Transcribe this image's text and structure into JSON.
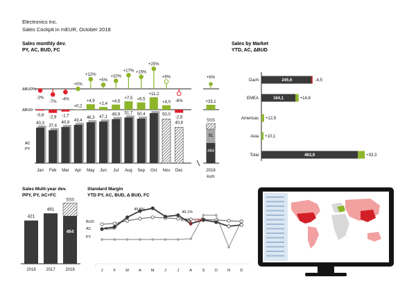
{
  "header": {
    "company": "Electronics Inc.",
    "subtitle": "Sales Cockpit in mEUR, October 2018"
  },
  "colors": {
    "ac": "#3a3a3a",
    "py": "#a6a6a6",
    "positive": "#8db52a",
    "negative": "#e0202a",
    "axis": "#222222"
  },
  "chart_data": [
    {
      "id": "sales-monthly",
      "type": "bar",
      "title": "Sales monthly dev.",
      "subtitle": "PY, AC, BUD, FC",
      "categories": [
        "Jan",
        "Feb",
        "Mar",
        "Apr",
        "May",
        "Jun",
        "Jul",
        "Aug",
        "Sep",
        "Oct",
        "Nov",
        "Dec"
      ],
      "series": [
        {
          "name": "PY",
          "values": [
            null,
            null,
            null,
            null,
            null,
            null,
            null,
            null,
            null,
            null,
            null,
            null
          ]
        },
        {
          "name": "AC",
          "values": [
            40.3,
            37.4,
            40.9,
            43.4,
            46.3,
            47.1,
            49.9,
            51.7,
            50.4,
            56.7,
            null,
            null
          ]
        },
        {
          "name": "FC",
          "values": [
            null,
            null,
            null,
            null,
            null,
            null,
            null,
            null,
            null,
            null,
            50.0,
            40.6
          ]
        }
      ],
      "value_labels": [
        "40,3",
        "37,4",
        "40,9",
        "43,4",
        "46,3",
        "47,1",
        "49,9",
        "51,7",
        "50,4",
        "56,7",
        "50,0",
        "40,6"
      ],
      "delta_bud_abs": [
        -0.8,
        -2.9,
        -1.7,
        0.2,
        4.9,
        2.4,
        4.6,
        7.5,
        6.5,
        11.2,
        4.0,
        -2.8
      ],
      "delta_bud_abs_labels": [
        "-0,8",
        "-2,9",
        "-1,7",
        "+0,2",
        "+4,9",
        "+2,4",
        "+4,6",
        "+7,5",
        "+6,5",
        "+11,2",
        "+4,0",
        "-2,8"
      ],
      "delta_bud_pct": [
        -2,
        -7,
        -4,
        0,
        12,
        5,
        10,
        17,
        15,
        25,
        9,
        -6
      ],
      "delta_bud_pct_labels": [
        "-2%",
        "-7%",
        "-4%",
        "+0%",
        "+12%",
        "+5%",
        "+10%",
        "+17%",
        "+15%",
        "+25%",
        "+9%",
        "-6%"
      ],
      "row_labels": {
        "pct": "ΔBUD%",
        "abs": "ΔBUD",
        "ac": "AC",
        "py": "PY"
      },
      "total": {
        "label": "2018",
        "sublabel": "kum",
        "ac": 464,
        "ac_label": "464",
        "py": 91,
        "py_label": "91",
        "sss_label": "SSS",
        "delta_abs": 33.1,
        "delta_abs_label": "+33,1",
        "delta_pct": 6,
        "delta_pct_label": "+6%"
      }
    },
    {
      "id": "sales-by-market",
      "type": "bar",
      "title": "Sales by Market",
      "subtitle": "YTD, AC, ΔBUD",
      "categories": [
        "Dach",
        "EMEA",
        "Americas",
        "Asia",
        "Total"
      ],
      "values": [
        245.6,
        164.1,
        null,
        null,
        463.9
      ],
      "value_labels": [
        "245,6",
        "164,1",
        "",
        "",
        "463,9"
      ],
      "deltas": [
        -4.5,
        14.8,
        12.9,
        10.1,
        33.3
      ],
      "delta_labels": [
        "-4,5",
        "+14,8",
        "+12,9",
        "+10,1",
        "+33,3"
      ]
    },
    {
      "id": "sales-multi-year",
      "type": "bar",
      "title": "Sales Multi-year dev.",
      "subtitle": "PPY, PY, AC+FC",
      "categories": [
        "2016",
        "2017",
        "2018"
      ],
      "values": [
        421,
        491,
        464
      ],
      "value_labels": [
        "421",
        "491",
        "464"
      ],
      "top_label": "SSS"
    },
    {
      "id": "standard-margin",
      "type": "line",
      "title": "Standard Margin",
      "subtitle": "YTD PY, AC, BUD, Δ BUD, FC",
      "categories": [
        "J",
        "F",
        "M",
        "A",
        "M",
        "J",
        "J",
        "A",
        "S",
        "O",
        "N",
        "D"
      ],
      "series_labels": [
        "BUD",
        "AC",
        "PY"
      ],
      "annotations": [
        {
          "text": "49,5%",
          "kind": "max"
        },
        {
          "text": "46,0%",
          "kind": "start"
        },
        {
          "text": "49,1%",
          "kind": "end"
        },
        {
          "text": "47,5%",
          "kind": "bud"
        },
        {
          "text": "-1,4%",
          "kind": "delta"
        }
      ]
    }
  ]
}
